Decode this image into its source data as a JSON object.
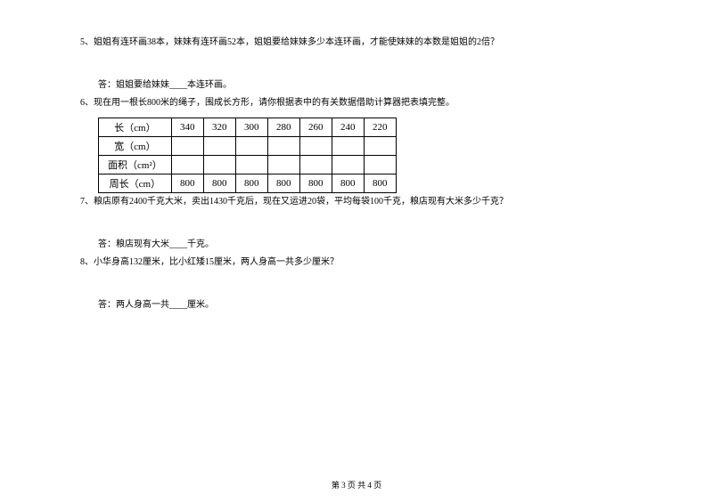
{
  "q5": {
    "text": "5、姐姐有连环画38本，妹妹有连环画52本，姐姐要给妹妹多少本连环画，才能使妹妹的本数是姐姐的2倍？",
    "answer": "答：姐姐要给妹妹____本连环画。"
  },
  "q6": {
    "text": "6、现在用一根长800米的绳子，围成长方形，请你根据表中的有关数据借助计算器把表填完整。",
    "table": {
      "row_headers": [
        "长（cm）",
        "宽（cm）",
        "面积（cm²）",
        "周长（cm）"
      ],
      "length_values": [
        "340",
        "320",
        "300",
        "280",
        "260",
        "240",
        "220"
      ],
      "width_values": [
        "",
        "",
        "",
        "",
        "",
        "",
        ""
      ],
      "area_values": [
        "",
        "",
        "",
        "",
        "",
        "",
        ""
      ],
      "perimeter_values": [
        "800",
        "800",
        "800",
        "800",
        "800",
        "800",
        "800"
      ]
    }
  },
  "q7": {
    "text": "7、粮店原有2400千克大米，卖出1430千克后，现在又运进20袋，平均每袋100千克，粮店现有大米多少千克？",
    "answer": "答：粮店现有大米____千克。"
  },
  "q8": {
    "text": "8、小华身高132厘米，比小红矮15厘米，两人身高一共多少厘米？",
    "answer": "答：两人身高一共____厘米。"
  },
  "footer": "第 3 页 共 4 页"
}
